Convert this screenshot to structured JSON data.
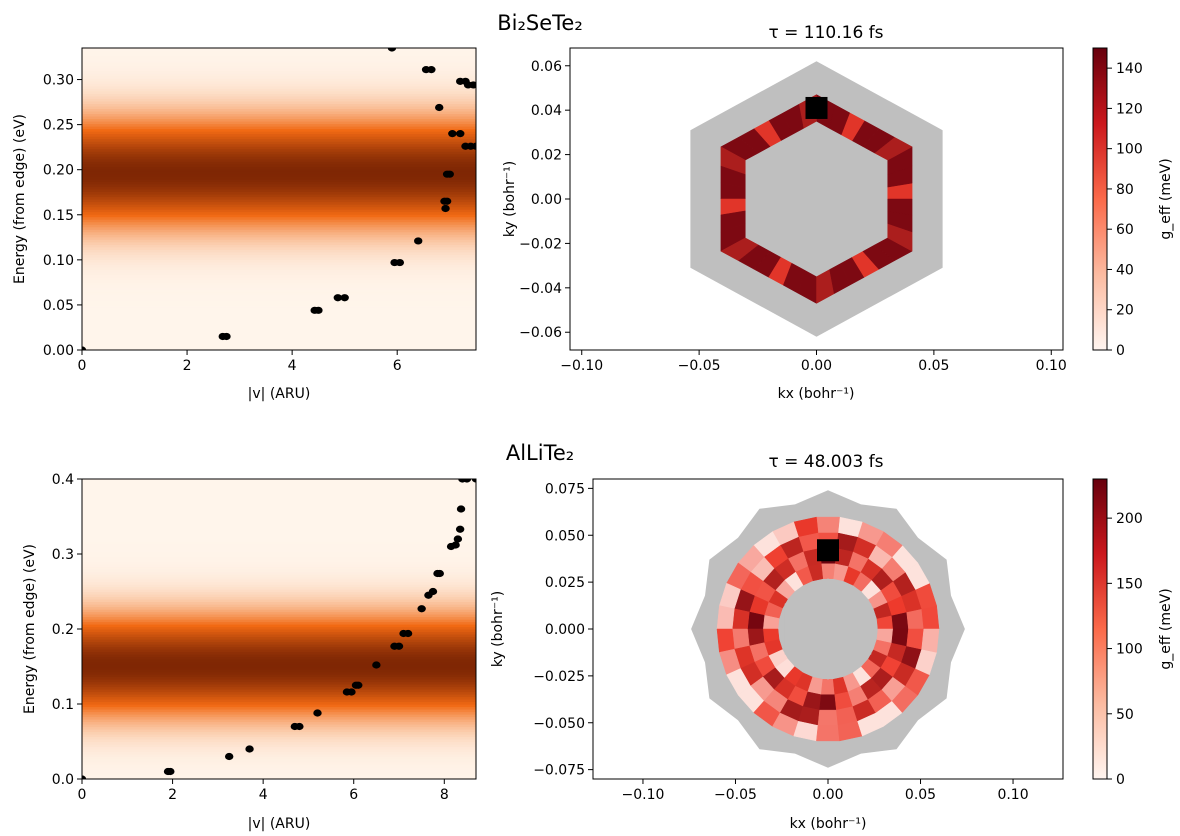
{
  "figure": {
    "colors": {
      "heat_low": "#fff5eb",
      "heat_mid": "#f16913",
      "heat_high": "#7f2704",
      "map_low": "#fff5f0",
      "map_mid": "#ef3b2c",
      "map_high": "#67000d",
      "gray_fill": "#bfbfbf",
      "marker": "#000000"
    }
  },
  "chart_data": [
    {
      "id": "bi-energy",
      "type": "scatter",
      "subplot_title": "",
      "xlabel": "|v| (ARU)",
      "ylabel": "Energy (from edge) (eV)",
      "xlim": [
        0,
        7.5
      ],
      "ylim": [
        0,
        0.335
      ],
      "xticks": [
        0,
        2,
        4,
        6
      ],
      "xtick_labels": [
        "0",
        "2",
        "4",
        "6"
      ],
      "yticks": [
        0.0,
        0.05,
        0.1,
        0.15,
        0.2,
        0.25,
        0.3
      ],
      "ytick_labels": [
        "0.00",
        "0.05",
        "0.10",
        "0.15",
        "0.20",
        "0.25",
        "0.30"
      ],
      "background": {
        "type": "gaussian_band",
        "center": 0.197,
        "sigma": 0.04
      },
      "points": [
        [
          0,
          0
        ],
        [
          2.68,
          0.015
        ],
        [
          2.75,
          0.015
        ],
        [
          4.43,
          0.044
        ],
        [
          4.5,
          0.044
        ],
        [
          4.87,
          0.058
        ],
        [
          5.0,
          0.058
        ],
        [
          5.95,
          0.097
        ],
        [
          6.05,
          0.097
        ],
        [
          6.4,
          0.121
        ],
        [
          5.9,
          0.335
        ],
        [
          6.55,
          0.311
        ],
        [
          6.65,
          0.311
        ],
        [
          6.8,
          0.269
        ],
        [
          6.9,
          0.165
        ],
        [
          6.95,
          0.165
        ],
        [
          6.92,
          0.157
        ],
        [
          6.95,
          0.195
        ],
        [
          7.0,
          0.195
        ],
        [
          7.05,
          0.24
        ],
        [
          7.2,
          0.24
        ],
        [
          7.2,
          0.298
        ],
        [
          7.3,
          0.298
        ],
        [
          7.35,
          0.294
        ],
        [
          7.45,
          0.294
        ],
        [
          7.3,
          0.226
        ],
        [
          7.4,
          0.226
        ],
        [
          7.5,
          0.226
        ]
      ]
    },
    {
      "id": "bi-bz",
      "type": "heatmap",
      "subplot_title": "τ = 110.16 fs",
      "suptitle": "Bi₂SeTe₂",
      "xlabel": "kx (bohr⁻¹)",
      "ylabel": "ky (bohr⁻¹)",
      "colorbar_label": "g_eff (meV)",
      "xlim": [
        -0.105,
        0.105
      ],
      "ylim": [
        -0.068,
        0.068
      ],
      "xticks": [
        -0.1,
        -0.05,
        0.0,
        0.05,
        0.1
      ],
      "xtick_labels": [
        "−0.10",
        "−0.05",
        "0.00",
        "0.05",
        "0.10"
      ],
      "yticks": [
        -0.06,
        -0.04,
        -0.02,
        0.0,
        0.02,
        0.04,
        0.06
      ],
      "ytick_labels": [
        "−0.06",
        "−0.04",
        "−0.02",
        "0.00",
        "0.02",
        "0.04",
        "0.06"
      ],
      "colorbar_range": [
        0,
        150
      ],
      "colorbar_ticks": [
        0,
        20,
        40,
        60,
        80,
        100,
        120,
        140
      ],
      "colorbar_tick_labels": [
        "0",
        "20",
        "40",
        "60",
        "80",
        "100",
        "120",
        "140"
      ],
      "outer_hexagon_radius": 0.062,
      "ring": {
        "outer_radius": 0.047,
        "inner_radius": 0.035,
        "value_min": 60,
        "value_max": 150
      },
      "highlight_marker": [
        0.0,
        0.041
      ]
    },
    {
      "id": "al-energy",
      "type": "scatter",
      "subplot_title": "",
      "xlabel": "|v| (ARU)",
      "ylabel": "Energy (from edge) (eV)",
      "xlim": [
        0,
        8.7
      ],
      "ylim": [
        0,
        0.4
      ],
      "xticks": [
        0,
        2,
        4,
        6,
        8
      ],
      "xtick_labels": [
        "0",
        "2",
        "4",
        "6",
        "8"
      ],
      "yticks": [
        0.0,
        0.1,
        0.2,
        0.3,
        0.4
      ],
      "ytick_labels": [
        "0.0",
        "0.1",
        "0.2",
        "0.3",
        "0.4"
      ],
      "background": {
        "type": "gaussian_band",
        "center": 0.152,
        "sigma": 0.045
      },
      "points": [
        [
          0,
          0
        ],
        [
          1.9,
          0.01
        ],
        [
          1.95,
          0.01
        ],
        [
          3.25,
          0.03
        ],
        [
          3.7,
          0.04
        ],
        [
          4.7,
          0.07
        ],
        [
          4.8,
          0.07
        ],
        [
          5.2,
          0.088
        ],
        [
          5.85,
          0.116
        ],
        [
          5.95,
          0.116
        ],
        [
          6.05,
          0.125
        ],
        [
          6.1,
          0.125
        ],
        [
          6.5,
          0.152
        ],
        [
          6.9,
          0.177
        ],
        [
          7.0,
          0.177
        ],
        [
          7.1,
          0.194
        ],
        [
          7.2,
          0.194
        ],
        [
          7.5,
          0.227
        ],
        [
          7.65,
          0.245
        ],
        [
          7.75,
          0.25
        ],
        [
          7.85,
          0.274
        ],
        [
          7.9,
          0.274
        ],
        [
          8.15,
          0.31
        ],
        [
          8.25,
          0.312
        ],
        [
          8.3,
          0.32
        ],
        [
          8.35,
          0.333
        ],
        [
          8.37,
          0.36
        ],
        [
          8.4,
          0.4
        ],
        [
          8.5,
          0.4
        ],
        [
          8.7,
          0.4
        ]
      ]
    },
    {
      "id": "al-bz",
      "type": "heatmap",
      "subplot_title": "τ = 48.003 fs",
      "suptitle": "AlLiTe₂",
      "xlabel": "kx (bohr⁻¹)",
      "ylabel": "ky (bohr⁻¹)",
      "colorbar_label": "g_eff (meV)",
      "xlim": [
        -0.127,
        0.127
      ],
      "ylim": [
        -0.08,
        0.08
      ],
      "xticks": [
        -0.1,
        -0.05,
        0.0,
        0.05,
        0.1
      ],
      "xtick_labels": [
        "−0.10",
        "−0.05",
        "0.00",
        "0.05",
        "0.10"
      ],
      "yticks": [
        -0.075,
        -0.05,
        -0.025,
        0.0,
        0.025,
        0.05,
        0.075
      ],
      "ytick_labels": [
        "−0.075",
        "−0.050",
        "−0.025",
        "0.000",
        "0.025",
        "0.050",
        "0.075"
      ],
      "colorbar_range": [
        0,
        230
      ],
      "colorbar_ticks": [
        0,
        50,
        100,
        150,
        200
      ],
      "colorbar_tick_labels": [
        "0",
        "50",
        "100",
        "150",
        "200"
      ],
      "outer_region_radius": 0.074,
      "ring": {
        "outer_radius": 0.06,
        "inner_radius": 0.027,
        "value_min": 0,
        "value_max": 230
      },
      "highlight_marker": [
        0.0,
        0.042
      ]
    }
  ]
}
